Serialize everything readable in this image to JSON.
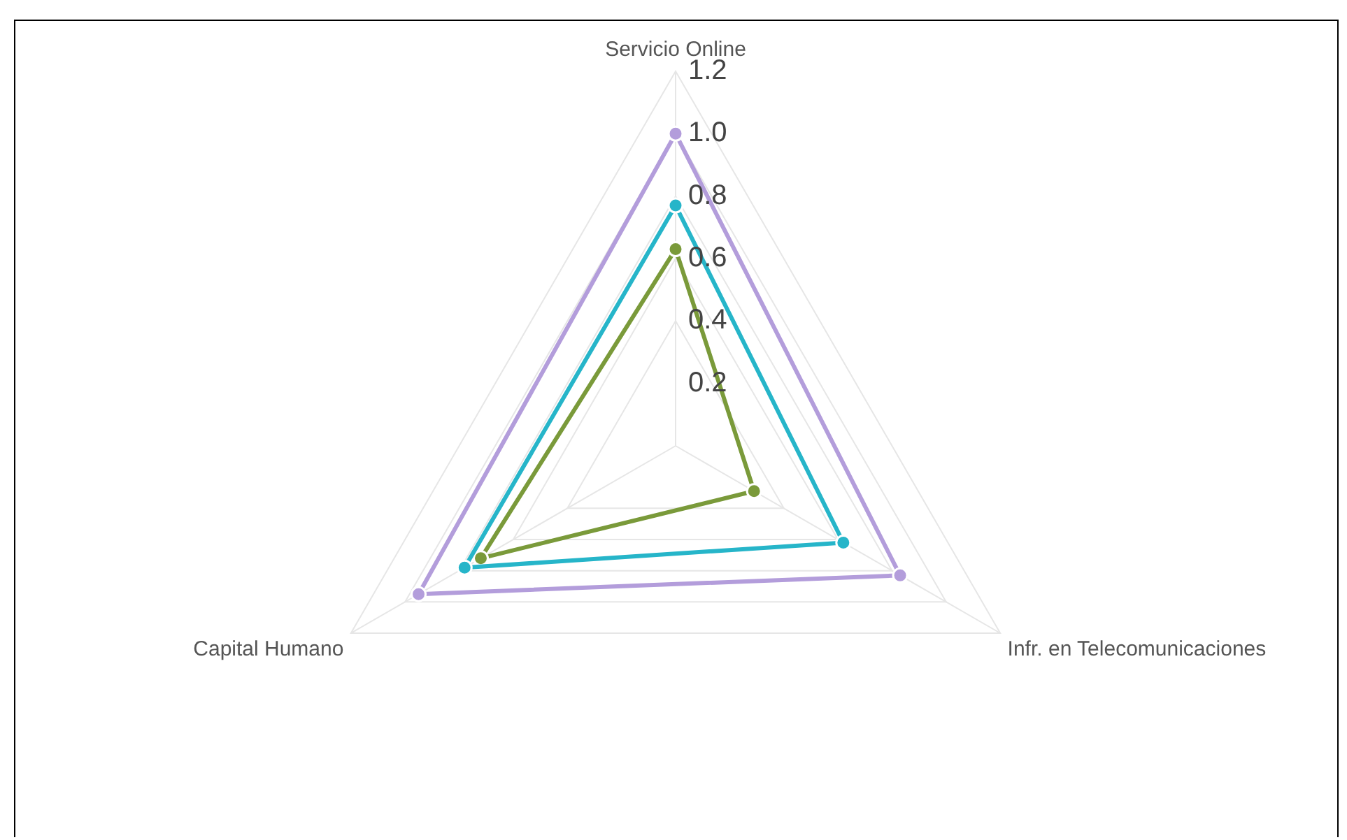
{
  "chart_data": {
    "type": "radar",
    "categories": [
      "Servicio Online",
      "Infr. en Telecomunicaciones",
      "Capital Humano"
    ],
    "series": [
      {
        "color": "#b39ddb",
        "values": [
          1.0,
          0.83,
          0.95
        ]
      },
      {
        "color": "#26b5c9",
        "values": [
          0.77,
          0.62,
          0.78
        ]
      },
      {
        "color": "#7a9a3a",
        "values": [
          0.63,
          0.29,
          0.72
        ]
      }
    ],
    "ylim": [
      0,
      1.2
    ],
    "yticks": [
      0.2,
      0.4,
      0.6,
      0.8,
      {
        "value": 1,
        "label": "1.0"
      },
      1.2
    ],
    "grid": true,
    "legend": false,
    "marker": "circle",
    "line_style": "solid"
  }
}
